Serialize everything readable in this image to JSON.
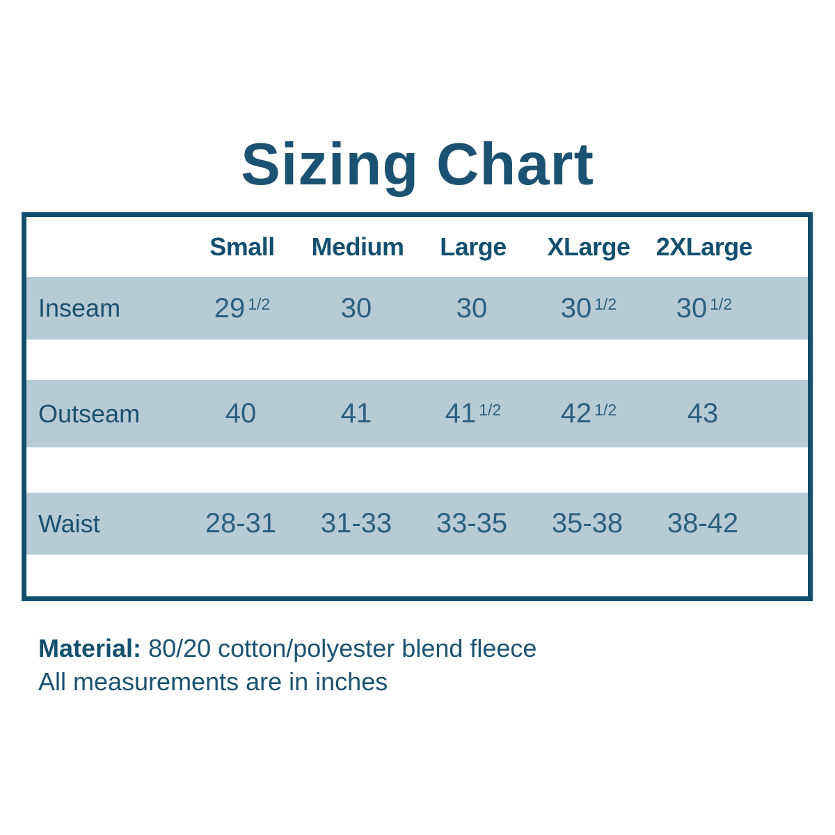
{
  "title": "Sizing Chart",
  "table": {
    "columns": [
      "Small",
      "Medium",
      "Large",
      "XLarge",
      "2XLarge"
    ],
    "rows": [
      {
        "label": "Inseam",
        "cells": [
          {
            "base": "29",
            "sup": "1/2"
          },
          {
            "base": "30",
            "sup": ""
          },
          {
            "base": "30",
            "sup": ""
          },
          {
            "base": "30",
            "sup": "1/2"
          },
          {
            "base": "30",
            "sup": "1/2"
          }
        ]
      },
      {
        "label": "Outseam",
        "cells": [
          {
            "base": "40",
            "sup": ""
          },
          {
            "base": "41",
            "sup": ""
          },
          {
            "base": "41",
            "sup": "1/2"
          },
          {
            "base": "42",
            "sup": "1/2"
          },
          {
            "base": "43",
            "sup": ""
          }
        ]
      },
      {
        "label": "Waist",
        "cells": [
          {
            "base": "28-31",
            "sup": ""
          },
          {
            "base": "31-33",
            "sup": ""
          },
          {
            "base": "33-35",
            "sup": ""
          },
          {
            "base": "35-38",
            "sup": ""
          },
          {
            "base": "38-42",
            "sup": ""
          }
        ]
      }
    ]
  },
  "footer": {
    "material_label": "Material:",
    "material_value": "80/20 cotton/polyester blend fleece",
    "note": "All measurements are in inches"
  },
  "colors": {
    "accent_dark_teal": "#14506e",
    "band_blue_gray": "#b7cbd5",
    "value_text": "#2b607e",
    "background": "#ffffff"
  },
  "chart_data": {
    "type": "table",
    "title": "Sizing Chart",
    "columns": [
      "Small",
      "Medium",
      "Large",
      "XLarge",
      "2XLarge"
    ],
    "rows": [
      {
        "label": "Inseam",
        "values": [
          "29 1/2",
          "30",
          "30",
          "30 1/2",
          "30 1/2"
        ]
      },
      {
        "label": "Outseam",
        "values": [
          "40",
          "41",
          "41 1/2",
          "42 1/2",
          "43"
        ]
      },
      {
        "label": "Waist",
        "values": [
          "28-31",
          "31-33",
          "33-35",
          "35-38",
          "38-42"
        ]
      }
    ],
    "notes": [
      "Material: 80/20 cotton/polyester blend fleece",
      "All measurements are in inches"
    ]
  }
}
